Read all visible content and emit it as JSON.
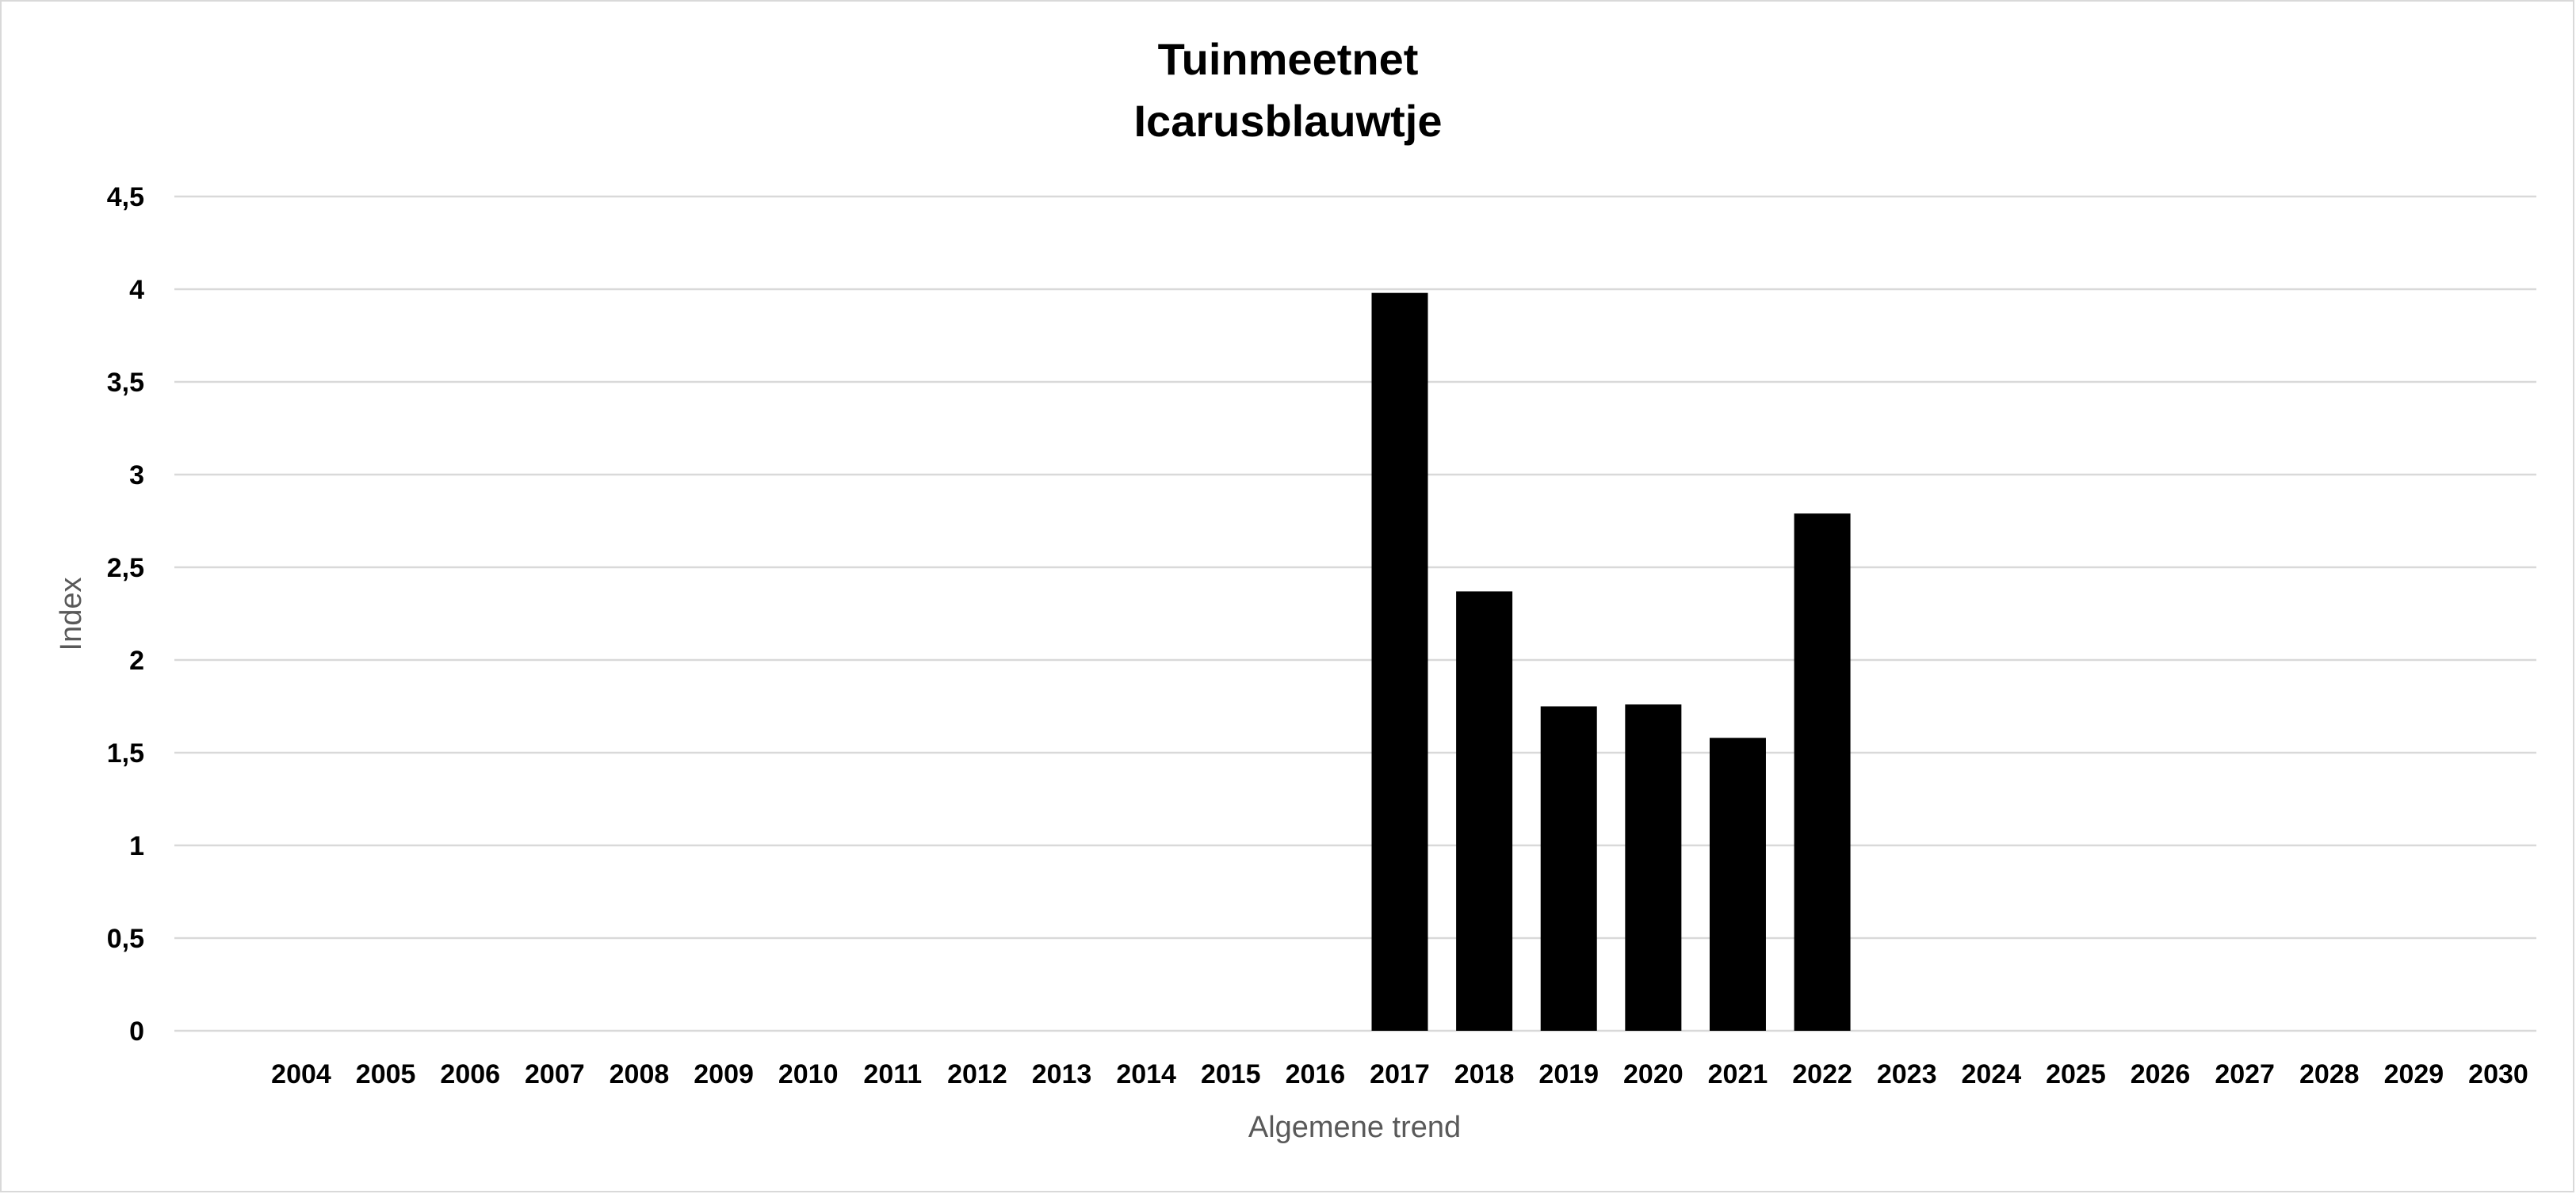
{
  "chart_data": {
    "type": "bar",
    "title": "Tuinmeetnet",
    "subtitle": "Icarusblauwtje",
    "xlabel": "Algemene trend",
    "ylabel": "Index",
    "ylim": [
      0,
      4.5
    ],
    "yticks": [
      "0",
      "0,5",
      "1",
      "1,5",
      "2",
      "2,5",
      "3",
      "3,5",
      "4",
      "4,5"
    ],
    "ytick_values": [
      0,
      0.5,
      1,
      1.5,
      2,
      2.5,
      3,
      3.5,
      4,
      4.5
    ],
    "grid": true,
    "categories": [
      "2004",
      "2005",
      "2006",
      "2007",
      "2008",
      "2009",
      "2010",
      "2011",
      "2012",
      "2013",
      "2014",
      "2015",
      "2016",
      "2017",
      "2018",
      "2019",
      "2020",
      "2021",
      "2022",
      "2023",
      "2024",
      "2025",
      "2026",
      "2027",
      "2028",
      "2029",
      "2030"
    ],
    "values": [
      null,
      null,
      null,
      null,
      null,
      null,
      null,
      null,
      null,
      null,
      null,
      null,
      null,
      3.98,
      2.37,
      1.75,
      1.76,
      1.58,
      2.79,
      null,
      null,
      null,
      null,
      null,
      null,
      null,
      null
    ],
    "bar_color": "#000000",
    "gridline_color": "#d9d9d9"
  }
}
